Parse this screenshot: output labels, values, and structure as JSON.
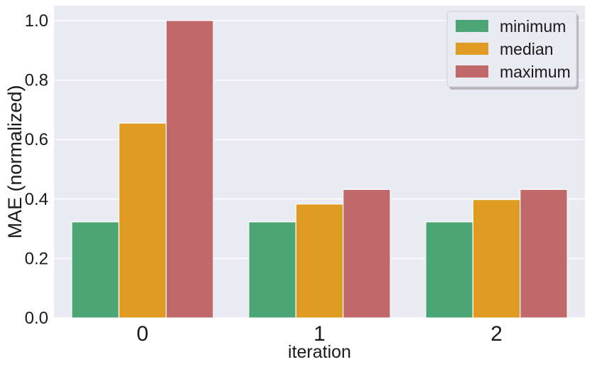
{
  "chart_data": {
    "type": "bar",
    "categories": [
      "0",
      "1",
      "2"
    ],
    "series": [
      {
        "name": "minimum",
        "color": "#4ba574",
        "values": [
          0.323,
          0.323,
          0.323
        ]
      },
      {
        "name": "median",
        "color": "#e09c22",
        "values": [
          0.655,
          0.383,
          0.398
        ]
      },
      {
        "name": "maximum",
        "color": "#c0686a",
        "values": [
          1.0,
          0.432,
          0.432
        ]
      }
    ],
    "xlabel": "iteration",
    "ylabel": "MAE (normalized)",
    "ylim": [
      0,
      1.05
    ],
    "yticks": [
      "0.0",
      "0.2",
      "0.4",
      "0.6",
      "0.8",
      "1.0"
    ],
    "grid": true,
    "legend_position": "top-right",
    "background_color": "#eaeaf2"
  }
}
